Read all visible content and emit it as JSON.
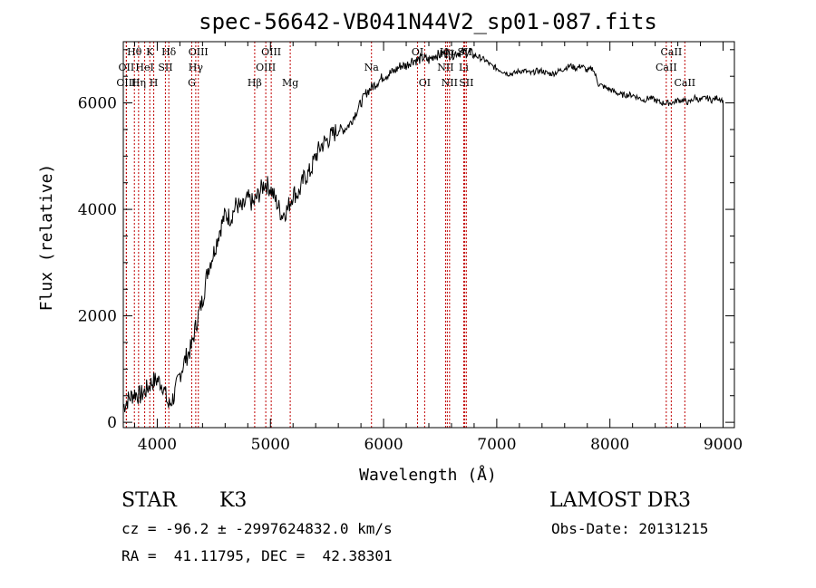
{
  "chart_data": {
    "type": "line",
    "title": "spec-56642-VB041N44V2_sp01-087.fits",
    "xlabel": "Wavelength (Å)",
    "ylabel": "Flux (relative)",
    "xlim": [
      3700,
      9100
    ],
    "ylim": [
      -100,
      7150
    ],
    "xticks": [
      4000,
      5000,
      6000,
      7000,
      8000,
      9000
    ],
    "yticks": [
      0,
      2000,
      4000,
      6000
    ],
    "series": [
      {
        "name": "flux",
        "x": [
          3700,
          3750,
          3800,
          3850,
          3900,
          3950,
          4000,
          4050,
          4100,
          4150,
          4200,
          4250,
          4300,
          4350,
          4400,
          4450,
          4500,
          4550,
          4600,
          4650,
          4700,
          4750,
          4800,
          4850,
          4900,
          4950,
          5000,
          5050,
          5100,
          5150,
          5200,
          5250,
          5300,
          5350,
          5400,
          5450,
          5500,
          5550,
          5600,
          5650,
          5700,
          5750,
          5800,
          5850,
          5900,
          5950,
          6000,
          6050,
          6100,
          6150,
          6200,
          6250,
          6300,
          6350,
          6400,
          6450,
          6500,
          6550,
          6600,
          6650,
          6700,
          6750,
          6800,
          6850,
          6900,
          6950,
          7000,
          7050,
          7100,
          7150,
          7200,
          7250,
          7300,
          7350,
          7400,
          7450,
          7500,
          7550,
          7600,
          7650,
          7700,
          7750,
          7800,
          7850,
          7900,
          7950,
          8000,
          8050,
          8100,
          8150,
          8200,
          8250,
          8300,
          8350,
          8400,
          8450,
          8500,
          8550,
          8600,
          8650,
          8700,
          8750,
          8800,
          8850,
          8900,
          8950,
          9000
        ],
        "y": [
          300,
          450,
          550,
          500,
          600,
          750,
          800,
          700,
          300,
          500,
          900,
          1200,
          1400,
          1900,
          2300,
          2900,
          3200,
          3600,
          3900,
          3850,
          4100,
          4000,
          4200,
          4100,
          4300,
          4500,
          4400,
          4150,
          3900,
          4000,
          4300,
          4300,
          4600,
          4700,
          5000,
          5200,
          5300,
          5400,
          5500,
          5500,
          5600,
          5800,
          6000,
          6200,
          6300,
          6400,
          6500,
          6550,
          6600,
          6700,
          6700,
          6800,
          6800,
          6850,
          6800,
          6900,
          6900,
          6950,
          6900,
          6950,
          6950,
          6950,
          6900,
          6850,
          6800,
          6700,
          6650,
          6600,
          6550,
          6550,
          6600,
          6600,
          6550,
          6600,
          6600,
          6550,
          6550,
          6600,
          6650,
          6700,
          6650,
          6700,
          6600,
          6650,
          6350,
          6300,
          6250,
          6200,
          6150,
          6150,
          6150,
          6100,
          6050,
          6100,
          6050,
          6000,
          6000,
          6000,
          6050,
          6050,
          6000,
          6100,
          6050,
          6100,
          6050,
          6100,
          6050
        ]
      }
    ],
    "lines": [
      {
        "label": "Hθ",
        "x": 3798,
        "row": 1
      },
      {
        "label": "OII",
        "x": 3727,
        "row": 2
      },
      {
        "label": "OIII",
        "x": 3727,
        "row": 3
      },
      {
        "label": "Hη",
        "x": 3835,
        "row": 3
      },
      {
        "label": "HeI",
        "x": 3889,
        "row": 2
      },
      {
        "label": "K",
        "x": 3934,
        "row": 1
      },
      {
        "label": "H",
        "x": 3969,
        "row": 3
      },
      {
        "label": "SII",
        "x": 4072,
        "row": 2
      },
      {
        "label": "Hδ",
        "x": 4102,
        "row": 1
      },
      {
        "label": "OIII",
        "x": 4363,
        "row": 1
      },
      {
        "label": "Hγ",
        "x": 4340,
        "row": 2
      },
      {
        "label": "G",
        "x": 4305,
        "row": 3
      },
      {
        "label": "Hβ",
        "x": 4861,
        "row": 3
      },
      {
        "label": "OIII",
        "x": 5007,
        "row": 1
      },
      {
        "label": "OIII",
        "x": 4959,
        "row": 2
      },
      {
        "label": "Mg",
        "x": 5175,
        "row": 3
      },
      {
        "label": "Na",
        "x": 5893,
        "row": 2
      },
      {
        "label": "OI",
        "x": 6300,
        "row": 1
      },
      {
        "label": "OI",
        "x": 6363,
        "row": 3
      },
      {
        "label": "Hα",
        "x": 6563,
        "row": 1
      },
      {
        "label": "NII",
        "x": 6548,
        "row": 2
      },
      {
        "label": "NII",
        "x": 6583,
        "row": 3
      },
      {
        "label": "SII",
        "x": 6717,
        "row": 1
      },
      {
        "label": "Li",
        "x": 6708,
        "row": 2
      },
      {
        "label": "SII",
        "x": 6731,
        "row": 3
      },
      {
        "label": "CaII",
        "x": 8542,
        "row": 1
      },
      {
        "label": "CaII",
        "x": 8498,
        "row": 2
      },
      {
        "label": "CaII",
        "x": 8662,
        "row": 3
      }
    ]
  },
  "info": {
    "object_type": "STAR",
    "subclass": "K3",
    "survey": "LAMOST DR3",
    "cz_line": "cz = -96.2 ± -2997624832.0 km/s",
    "obs_date": "Obs-Date: 20131215",
    "coords": "RA =  41.11795, DEC =  42.38301"
  },
  "colors": {
    "spectrum": "#000000",
    "line_marker": "#c00000",
    "axis": "#000000"
  }
}
